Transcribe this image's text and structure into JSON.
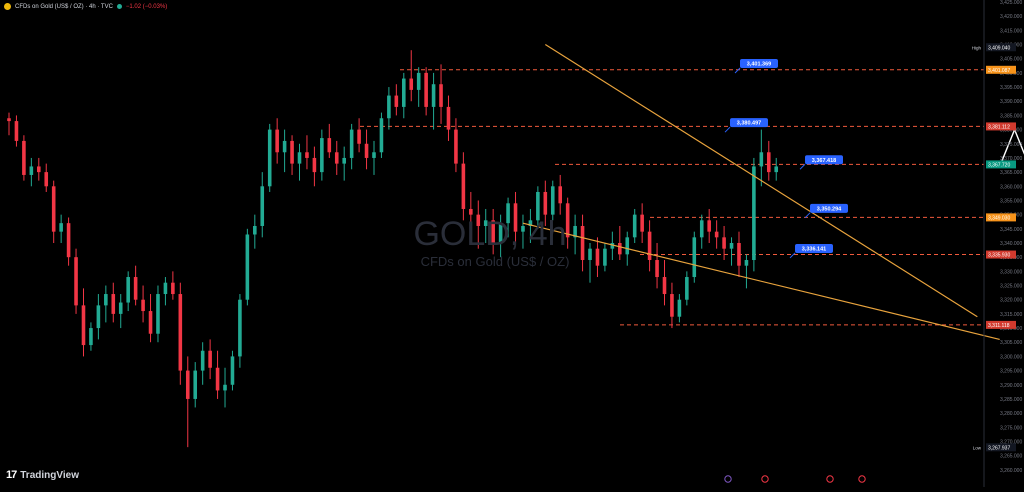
{
  "header": {
    "symbol_title": "CFDs on Gold (US$ / OZ) · 4h · TVC",
    "change": "−1.02 (−0.03%)"
  },
  "watermark": {
    "symbol": "GOLD, 4h",
    "description": "CFDs on Gold (US$ / OZ)"
  },
  "branding": {
    "name": "TradingView",
    "logo_text": "17"
  },
  "colors": {
    "up": "#22ab94",
    "down": "#f23645",
    "trendline": "#e8a33d",
    "level_line": "#f05a3c",
    "callout": "#2962ff",
    "white_arrow": "#ffffff",
    "red_arrow": "#f23645",
    "background": "#000000"
  },
  "chart_data": {
    "type": "candlestick",
    "timeframe": "4h",
    "ylim": [
      3255,
      3425
    ],
    "y_ticks": [
      3260,
      3265,
      3270,
      3275,
      3280,
      3285,
      3290,
      3295,
      3300,
      3305,
      3310,
      3315,
      3320,
      3325,
      3330,
      3335,
      3340,
      3345,
      3350,
      3355,
      3360,
      3365,
      3370,
      3375,
      3380,
      3385,
      3390,
      3395,
      3400,
      3405,
      3410,
      3415,
      3420,
      3425
    ],
    "price_tags": [
      {
        "label": "High",
        "value": "3,409.040",
        "price": 3409.04,
        "style": "dark"
      },
      {
        "label": "",
        "value": "3,401.087",
        "price": 3401.087,
        "style": "orange"
      },
      {
        "label": "",
        "value": "3,381.112",
        "price": 3381.112,
        "style": "red"
      },
      {
        "label": "",
        "value": "3,367.720",
        "price": 3367.72,
        "style": "teal"
      },
      {
        "label": "",
        "value": "3,349.030",
        "price": 3349.03,
        "style": "orange"
      },
      {
        "label": "",
        "value": "3,335.930",
        "price": 3335.93,
        "style": "red"
      },
      {
        "label": "",
        "value": "3,311.118",
        "price": 3311.118,
        "style": "red"
      },
      {
        "label": "Low",
        "value": "3,267.937",
        "price": 3267.937,
        "style": "dark"
      }
    ],
    "levels": [
      3401.087,
      3381.112,
      3367.72,
      3349.03,
      3335.93,
      3311.118
    ],
    "annotations": [
      {
        "text": "3,401.369",
        "price": 3401.369
      },
      {
        "text": "3,380.497",
        "price": 3380.497
      },
      {
        "text": "3,367.418",
        "price": 3367.418
      },
      {
        "text": "3,350.294",
        "price": 3350.294
      },
      {
        "text": "3,336.141",
        "price": 3336.141
      }
    ],
    "trendlines": [
      {
        "from": [
          72,
          3410
        ],
        "to": [
          130,
          3314
        ]
      },
      {
        "from": [
          69,
          3347
        ],
        "to": [
          133,
          3306
        ]
      }
    ],
    "projection_white": [
      [
        133,
        3367
      ],
      [
        135,
        3380
      ],
      [
        137,
        3367
      ],
      [
        146,
        3400
      ]
    ],
    "projection_red": [
      [
        138,
        3367
      ],
      [
        143,
        3349
      ],
      [
        157,
        3399
      ]
    ],
    "candles": [
      [
        3384,
        3386,
        3378,
        3383
      ],
      [
        3383,
        3385,
        3374,
        3376
      ],
      [
        3376,
        3378,
        3362,
        3364
      ],
      [
        3364,
        3370,
        3360,
        3367
      ],
      [
        3367,
        3370,
        3362,
        3365
      ],
      [
        3365,
        3368,
        3358,
        3360
      ],
      [
        3360,
        3362,
        3340,
        3344
      ],
      [
        3344,
        3350,
        3340,
        3347
      ],
      [
        3347,
        3349,
        3332,
        3335
      ],
      [
        3335,
        3338,
        3315,
        3318
      ],
      [
        3318,
        3324,
        3300,
        3304
      ],
      [
        3304,
        3312,
        3302,
        3310
      ],
      [
        3310,
        3322,
        3306,
        3318
      ],
      [
        3318,
        3325,
        3312,
        3322
      ],
      [
        3322,
        3326,
        3312,
        3315
      ],
      [
        3315,
        3322,
        3310,
        3319
      ],
      [
        3319,
        3330,
        3316,
        3328
      ],
      [
        3328,
        3332,
        3318,
        3320
      ],
      [
        3320,
        3325,
        3312,
        3316
      ],
      [
        3316,
        3322,
        3305,
        3308
      ],
      [
        3308,
        3325,
        3305,
        3322
      ],
      [
        3322,
        3328,
        3318,
        3326
      ],
      [
        3326,
        3330,
        3320,
        3322
      ],
      [
        3322,
        3326,
        3290,
        3295
      ],
      [
        3295,
        3300,
        3268,
        3285
      ],
      [
        3285,
        3298,
        3282,
        3295
      ],
      [
        3295,
        3305,
        3290,
        3302
      ],
      [
        3302,
        3306,
        3292,
        3296
      ],
      [
        3296,
        3302,
        3285,
        3288
      ],
      [
        3288,
        3296,
        3282,
        3290
      ],
      [
        3290,
        3302,
        3288,
        3300
      ],
      [
        3300,
        3322,
        3296,
        3320
      ],
      [
        3320,
        3345,
        3318,
        3343
      ],
      [
        3343,
        3350,
        3338,
        3346
      ],
      [
        3346,
        3365,
        3342,
        3360
      ],
      [
        3360,
        3382,
        3358,
        3380
      ],
      [
        3380,
        3384,
        3368,
        3372
      ],
      [
        3372,
        3380,
        3365,
        3376
      ],
      [
        3376,
        3378,
        3364,
        3368
      ],
      [
        3368,
        3375,
        3362,
        3372
      ],
      [
        3372,
        3378,
        3366,
        3370
      ],
      [
        3370,
        3374,
        3360,
        3365
      ],
      [
        3365,
        3380,
        3362,
        3377
      ],
      [
        3377,
        3382,
        3370,
        3372
      ],
      [
        3372,
        3376,
        3364,
        3368
      ],
      [
        3368,
        3374,
        3362,
        3370
      ],
      [
        3370,
        3382,
        3366,
        3380
      ],
      [
        3380,
        3384,
        3372,
        3375
      ],
      [
        3375,
        3380,
        3366,
        3370
      ],
      [
        3370,
        3376,
        3364,
        3372
      ],
      [
        3372,
        3386,
        3370,
        3384
      ],
      [
        3384,
        3395,
        3380,
        3392
      ],
      [
        3392,
        3396,
        3385,
        3388
      ],
      [
        3388,
        3400,
        3384,
        3398
      ],
      [
        3398,
        3408,
        3390,
        3394
      ],
      [
        3394,
        3402,
        3388,
        3400
      ],
      [
        3400,
        3402,
        3385,
        3388
      ],
      [
        3388,
        3400,
        3380,
        3396
      ],
      [
        3396,
        3403,
        3382,
        3388
      ],
      [
        3388,
        3392,
        3376,
        3380
      ],
      [
        3380,
        3384,
        3365,
        3368
      ],
      [
        3368,
        3372,
        3348,
        3352
      ],
      [
        3352,
        3358,
        3344,
        3350
      ],
      [
        3350,
        3355,
        3338,
        3346
      ],
      [
        3346,
        3352,
        3340,
        3348
      ],
      [
        3348,
        3352,
        3336,
        3340
      ],
      [
        3340,
        3350,
        3335,
        3347
      ],
      [
        3347,
        3356,
        3342,
        3354
      ],
      [
        3354,
        3358,
        3340,
        3344
      ],
      [
        3344,
        3350,
        3338,
        3346
      ],
      [
        3346,
        3352,
        3340,
        3348
      ],
      [
        3348,
        3360,
        3345,
        3358
      ],
      [
        3358,
        3362,
        3346,
        3350
      ],
      [
        3350,
        3362,
        3348,
        3360
      ],
      [
        3360,
        3364,
        3350,
        3354
      ],
      [
        3354,
        3356,
        3338,
        3342
      ],
      [
        3342,
        3350,
        3336,
        3346
      ],
      [
        3346,
        3350,
        3330,
        3334
      ],
      [
        3334,
        3340,
        3326,
        3338
      ],
      [
        3338,
        3342,
        3328,
        3332
      ],
      [
        3332,
        3340,
        3330,
        3338
      ],
      [
        3338,
        3344,
        3334,
        3340
      ],
      [
        3340,
        3346,
        3334,
        3336
      ],
      [
        3336,
        3344,
        3332,
        3342
      ],
      [
        3342,
        3352,
        3340,
        3350
      ],
      [
        3350,
        3354,
        3340,
        3344
      ],
      [
        3344,
        3348,
        3330,
        3334
      ],
      [
        3334,
        3340,
        3324,
        3328
      ],
      [
        3328,
        3334,
        3318,
        3322
      ],
      [
        3322,
        3326,
        3310,
        3314
      ],
      [
        3314,
        3322,
        3312,
        3320
      ],
      [
        3320,
        3330,
        3318,
        3328
      ],
      [
        3328,
        3344,
        3326,
        3342
      ],
      [
        3342,
        3350,
        3338,
        3348
      ],
      [
        3348,
        3352,
        3340,
        3344
      ],
      [
        3344,
        3348,
        3338,
        3342
      ],
      [
        3342,
        3346,
        3334,
        3338
      ],
      [
        3338,
        3342,
        3332,
        3340
      ],
      [
        3340,
        3344,
        3328,
        3332
      ],
      [
        3332,
        3336,
        3324,
        3334
      ],
      [
        3334,
        3370,
        3330,
        3367
      ],
      [
        3367,
        3380,
        3360,
        3372
      ],
      [
        3372,
        3376,
        3362,
        3365
      ],
      [
        3365,
        3370,
        3362,
        3367
      ]
    ]
  }
}
